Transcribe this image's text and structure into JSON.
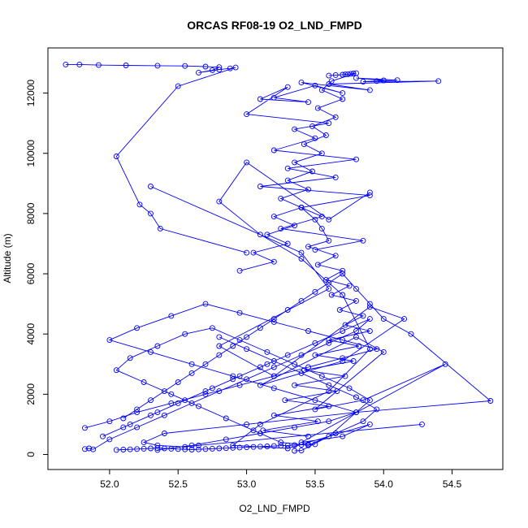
{
  "chart_data": {
    "type": "line",
    "title": "ORCAS RF08-19 O2_LND_FMPD",
    "xlabel": "O2_LND_FMPD",
    "ylabel": "Altitude (m)",
    "xlim": [
      51.55,
      54.87
    ],
    "ylim": [
      -500,
      13500
    ],
    "xticks": [
      52.0,
      52.5,
      53.0,
      53.5,
      54.0,
      54.5
    ],
    "xtick_labels": [
      "52.0",
      "52.5",
      "53.0",
      "53.5",
      "54.0",
      "54.5"
    ],
    "yticks": [
      0,
      2000,
      4000,
      6000,
      8000,
      10000,
      12000
    ],
    "ytick_labels": [
      "0",
      "2000",
      "4000",
      "6000",
      "8000",
      "10000",
      "12000"
    ],
    "series_color": "#0000ff",
    "marker": "open-circle",
    "grid": false,
    "series": [
      {
        "x": [
          51.68,
          51.78,
          51.92,
          52.12,
          52.35,
          52.55,
          52.7,
          52.8,
          52.75,
          52.65,
          52.8,
          52.88,
          52.92,
          52.5,
          52.05,
          52.22,
          52.3,
          52.37,
          53.0
        ],
        "y": [
          12950,
          12950,
          12930,
          12920,
          12910,
          12900,
          12880,
          12860,
          12760,
          12680,
          12780,
          12820,
          12850,
          12230,
          9900,
          8300,
          8000,
          7500,
          6700
        ]
      },
      {
        "x": [
          52.3,
          53.4,
          53.6,
          52.8,
          53.2,
          53.9,
          54.15,
          53.7,
          53.1,
          53.8,
          54.0,
          53.5,
          53.85,
          54.45,
          53.4,
          53.7,
          53.9,
          53.3,
          52.9,
          53.1,
          53.6,
          53.9,
          53.7,
          53.4,
          53.1,
          52.8,
          53.0,
          53.6,
          53.9
        ],
        "y": [
          8900,
          6700,
          5500,
          3600,
          2600,
          4900,
          4500,
          3100,
          2300,
          3900,
          3400,
          1500,
          1800,
          3000,
          400,
          600,
          1000,
          200,
          300,
          1000,
          2100,
          3500,
          5300,
          6500,
          7300,
          8400,
          9700,
          7800,
          8700
        ]
      },
      {
        "x": [
          53.95,
          54.0,
          53.8,
          54.1,
          53.85,
          54.4,
          53.6,
          53.9,
          53.4,
          53.7,
          53.5,
          53.2,
          53.45,
          53.1,
          53.3,
          53.0,
          53.6,
          53.35,
          53.5,
          53.2,
          53.8,
          53.3,
          53.65,
          53.1,
          53.9,
          53.4,
          53.55,
          53.25,
          53.85,
          53.5
        ],
        "y": [
          12400,
          12420,
          12500,
          12430,
          12380,
          12400,
          12300,
          12100,
          12350,
          12000,
          12250,
          11850,
          11700,
          11800,
          12200,
          11300,
          11000,
          10800,
          10500,
          10100,
          9800,
          9500,
          9200,
          8900,
          8600,
          8200,
          7900,
          7500,
          7100,
          6800
        ]
      },
      {
        "x": [
          53.6,
          53.65,
          53.7,
          53.72,
          53.74,
          53.76,
          53.78,
          53.8,
          53.62,
          53.55,
          53.7,
          53.52,
          53.65,
          53.48,
          53.58,
          53.42,
          53.55,
          53.35,
          53.48,
          53.3,
          53.45,
          53.25,
          53.4,
          53.2,
          53.35,
          53.15,
          53.3,
          53.05,
          53.2,
          52.95
        ],
        "y": [
          12580,
          12600,
          12610,
          12620,
          12630,
          12640,
          12650,
          12660,
          12400,
          12100,
          11800,
          11500,
          11200,
          10900,
          10600,
          10300,
          10000,
          9700,
          9400,
          9100,
          8800,
          8500,
          8200,
          7900,
          7600,
          7300,
          7000,
          6700,
          6400,
          6100
        ]
      },
      {
        "x": [
          53.4,
          53.5,
          53.55,
          53.6,
          53.45,
          53.65,
          53.52,
          53.7,
          53.58,
          53.75,
          53.62,
          53.8,
          53.68,
          53.85,
          53.72,
          53.9,
          53.6,
          53.82,
          53.5,
          53.78,
          53.42,
          53.72,
          53.35,
          53.66,
          53.28,
          53.6,
          53.2,
          53.52,
          53.12,
          53.45
        ],
        "y": [
          8200,
          7800,
          7500,
          7100,
          6900,
          6600,
          6300,
          6100,
          5800,
          5600,
          5300,
          5100,
          4800,
          4600,
          4300,
          4100,
          3800,
          3600,
          3300,
          3100,
          2800,
          2600,
          2300,
          2100,
          1800,
          1600,
          1300,
          1100,
          800,
          600
        ]
      },
      {
        "x": [
          51.82,
          51.85,
          51.88,
          52.0,
          52.2,
          52.4,
          52.6,
          52.8,
          53.0,
          53.2,
          53.4,
          53.6,
          53.8,
          53.9,
          53.7,
          53.5,
          53.3,
          53.1,
          52.9,
          52.7,
          52.5,
          52.3,
          52.1,
          51.95,
          52.15,
          52.35,
          52.55,
          52.75,
          52.95,
          53.15
        ],
        "y": [
          180,
          200,
          170,
          500,
          900,
          1300,
          1700,
          2100,
          2500,
          2900,
          3300,
          3700,
          4100,
          4500,
          4100,
          3700,
          3300,
          2900,
          2500,
          2100,
          1700,
          1300,
          900,
          600,
          1000,
          1400,
          1800,
          2200,
          2600,
          3000
        ]
      },
      {
        "x": [
          52.05,
          52.1,
          52.15,
          52.2,
          52.25,
          52.3,
          52.35,
          52.4,
          52.45,
          52.5,
          52.55,
          52.6,
          52.65,
          52.7,
          52.75,
          52.8,
          52.85,
          52.9,
          52.95,
          53.0,
          53.05,
          53.1,
          53.15,
          53.2,
          53.25,
          53.3,
          53.35,
          53.4,
          53.45,
          53.5
        ],
        "y": [
          150,
          160,
          170,
          180,
          190,
          200,
          210,
          200,
          190,
          180,
          170,
          160,
          170,
          180,
          190,
          200,
          210,
          220,
          230,
          240,
          250,
          260,
          270,
          280,
          290,
          300,
          310,
          320,
          330,
          340
        ]
      },
      {
        "x": [
          52.1,
          52.2,
          52.3,
          52.4,
          52.5,
          52.6,
          52.7,
          52.8,
          52.9,
          53.0,
          53.1,
          53.2,
          53.3,
          53.4,
          53.5,
          53.6,
          53.7,
          53.8,
          53.9,
          54.0,
          54.2,
          54.78,
          53.8,
          53.0,
          52.4,
          52.25,
          52.35,
          52.55,
          52.65,
          54.28
        ],
        "y": [
          1200,
          1500,
          1800,
          2100,
          2400,
          2700,
          3000,
          3300,
          3600,
          3900,
          4200,
          4500,
          4800,
          5100,
          5400,
          5700,
          6000,
          5500,
          5000,
          4500,
          4000,
          1780,
          1400,
          1000,
          700,
          400,
          300,
          250,
          300,
          1000
        ]
      },
      {
        "x": [
          51.82,
          52.0,
          52.2,
          52.45,
          52.7,
          52.95,
          53.2,
          53.45,
          53.7,
          53.95,
          53.7,
          53.45,
          53.2,
          52.95,
          52.7,
          52.45,
          52.2,
          52.0,
          52.3,
          52.6,
          52.9,
          53.2,
          53.5,
          53.8,
          53.6,
          53.35,
          53.1,
          52.85,
          52.6,
          52.35
        ],
        "y": [
          880,
          1100,
          1400,
          1700,
          2000,
          2300,
          2600,
          2900,
          3200,
          3500,
          3800,
          4100,
          4400,
          4700,
          5000,
          4600,
          4200,
          3800,
          3400,
          3000,
          2600,
          2200,
          1800,
          1400,
          1100,
          900,
          700,
          500,
          300,
          150
        ]
      },
      {
        "x": [
          53.35,
          53.4,
          53.6,
          53.9,
          53.75,
          53.55,
          53.35,
          53.15,
          52.95,
          52.75,
          52.55,
          52.35,
          52.15,
          52.05,
          52.25,
          52.45,
          52.65,
          52.85,
          53.05,
          53.25,
          53.45,
          53.65,
          53.85,
          53.95,
          53.8,
          53.6,
          53.4,
          53.2,
          53.0,
          52.8
        ],
        "y": [
          120,
          130,
          600,
          1800,
          2200,
          2600,
          3000,
          3400,
          3800,
          4200,
          4000,
          3600,
          3200,
          2800,
          2400,
          2000,
          1600,
          1200,
          800,
          400,
          300,
          700,
          1100,
          1500,
          1900,
          2300,
          2700,
          3100,
          3500,
          3900
        ]
      }
    ]
  }
}
